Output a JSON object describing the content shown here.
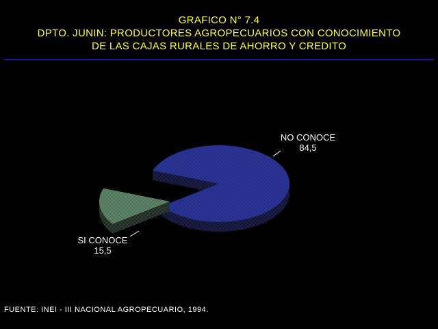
{
  "title": {
    "line1": "GRAFICO N° 7.4",
    "line2": "DPTO. JUNIN: PRODUCTORES AGROPECUARIOS CON CONOCIMIENTO",
    "line3": "DE LAS CAJAS RURALES DE AHORRO Y CREDITO"
  },
  "source": "FUENTE: INEI - III NACIONAL AGROPECUARIO, 1994.",
  "colors": {
    "background": "#000000",
    "title": "#ffff33",
    "rule": "#1a1aa0",
    "no_conoce_top": "#2b35a8",
    "no_conoce_side": "#1a2070",
    "si_conoce_top": "#5e8c6a",
    "si_conoce_side": "#2f4a38"
  },
  "chart_data": {
    "type": "pie",
    "exploded_3d": true,
    "slices": [
      {
        "label": "NO CONOCE",
        "value": 84.5,
        "value_text": "84,5",
        "color": "#2b35a8",
        "side_color": "#1a2070"
      },
      {
        "label": "SI CONOCE",
        "value": 15.5,
        "value_text": "15,5",
        "color": "#5e8c6a",
        "side_color": "#2f4a38",
        "exploded": true
      }
    ]
  }
}
